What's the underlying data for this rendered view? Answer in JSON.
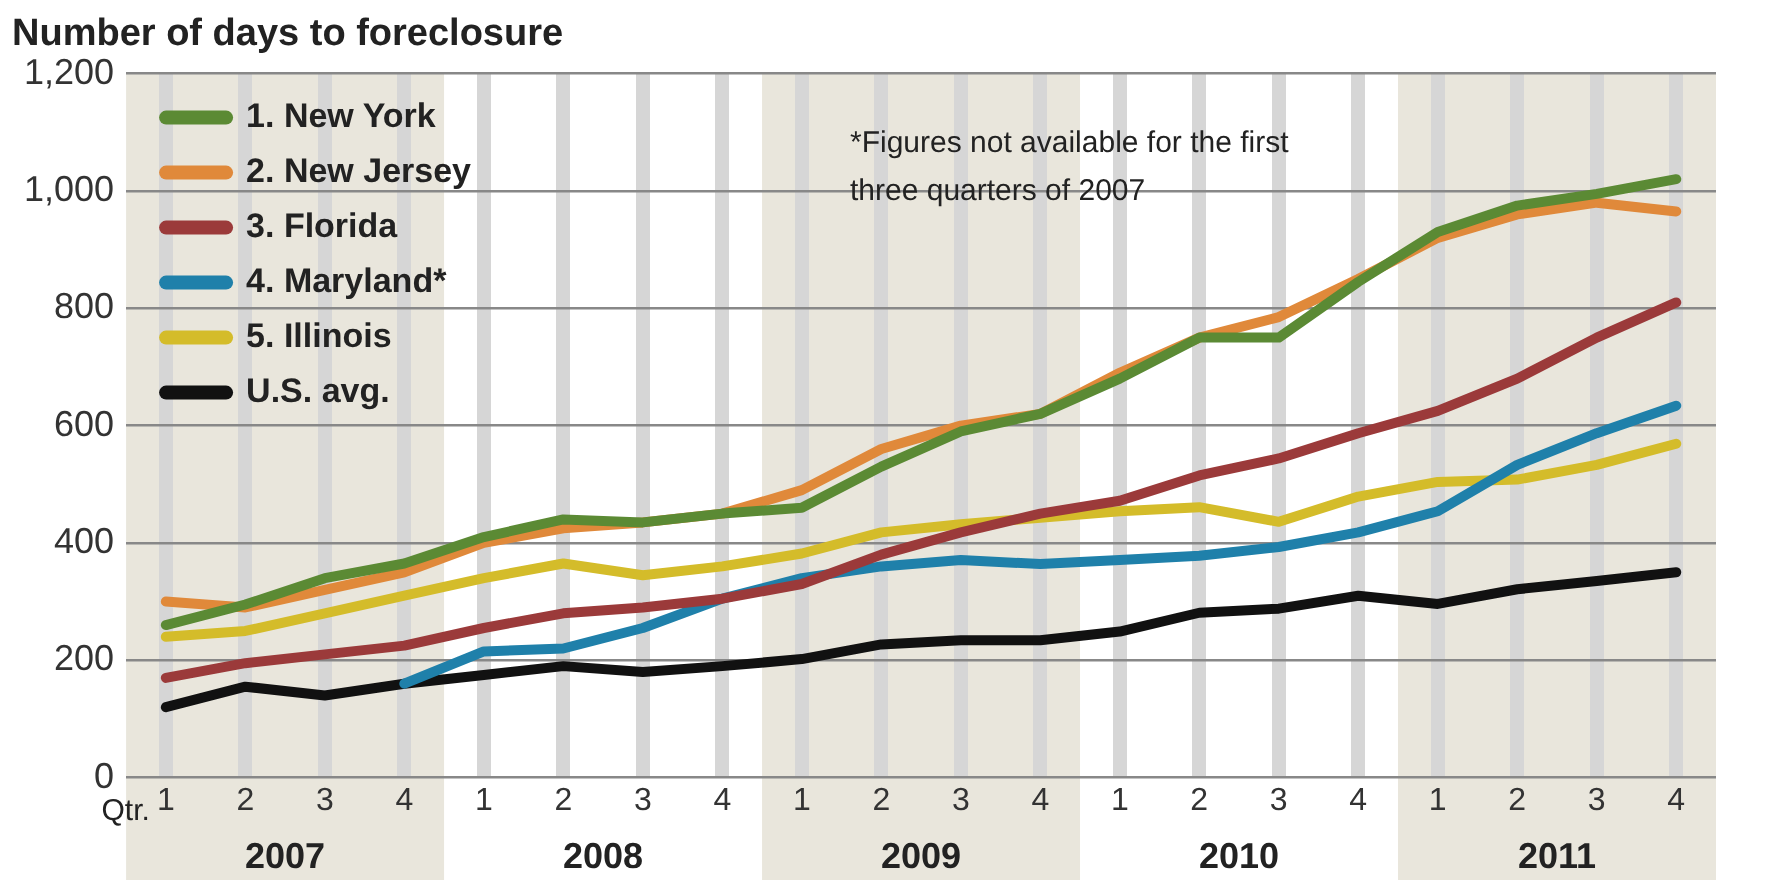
{
  "chart_data": {
    "type": "line",
    "title": "Number of days to foreclosure",
    "xlabel": "Qtr.",
    "categories": [
      "1",
      "2",
      "3",
      "4",
      "1",
      "2",
      "3",
      "4",
      "1",
      "2",
      "3",
      "4",
      "1",
      "2",
      "3",
      "4",
      "1",
      "2",
      "3",
      "4"
    ],
    "series": [
      {
        "name": "1. New York",
        "color": "#5b8a34",
        "values": [
          260,
          295,
          340,
          365,
          410,
          440,
          435,
          450,
          460,
          530,
          590,
          620,
          680,
          750,
          750,
          845,
          930,
          975,
          995,
          1020
        ]
      },
      {
        "name": "2. New Jersey",
        "color": "#e0893a",
        "values": [
          300,
          290,
          320,
          350,
          400,
          425,
          435,
          450,
          490,
          560,
          600,
          620,
          690,
          750,
          785,
          850,
          920,
          960,
          980,
          965
        ]
      },
      {
        "name": "3. Florida",
        "color": "#9b3a3a",
        "values": [
          170,
          195,
          210,
          225,
          255,
          280,
          290,
          305,
          330,
          380,
          418,
          450,
          472,
          515,
          544,
          587,
          625,
          680,
          750,
          810
        ]
      },
      {
        "name": "4. Maryland*",
        "color": "#1f80aa",
        "values": [
          null,
          null,
          null,
          160,
          215,
          220,
          255,
          305,
          340,
          360,
          371,
          364,
          371,
          378,
          393,
          418,
          454,
          533,
          587,
          634
        ]
      },
      {
        "name": "5. Illinois",
        "color": "#d4bc2a",
        "values": [
          240,
          250,
          280,
          310,
          340,
          365,
          345,
          360,
          382,
          418,
          432,
          443,
          454,
          461,
          436,
          479,
          504,
          508,
          533,
          569
        ]
      },
      {
        "name": "U.S. avg.",
        "color": "#111111",
        "values": [
          120,
          155,
          140,
          160,
          175,
          190,
          180,
          190,
          202,
          227,
          234,
          234,
          249,
          281,
          288,
          310,
          296,
          321,
          335,
          350
        ]
      }
    ],
    "ylim": [
      0,
      1200
    ],
    "yticks": [
      0,
      200,
      400,
      600,
      800,
      {
        "value": 1000,
        "label": "1,000"
      },
      {
        "value": 1200,
        "label": "1,200"
      }
    ],
    "grid": true,
    "legend": "top left",
    "marker": "none",
    "line_style": "solid",
    "annotations": [
      "*Figures not available for the first three quarters of 2007",
      "2007",
      "2008",
      "2009",
      "2010",
      "2011"
    ]
  }
}
